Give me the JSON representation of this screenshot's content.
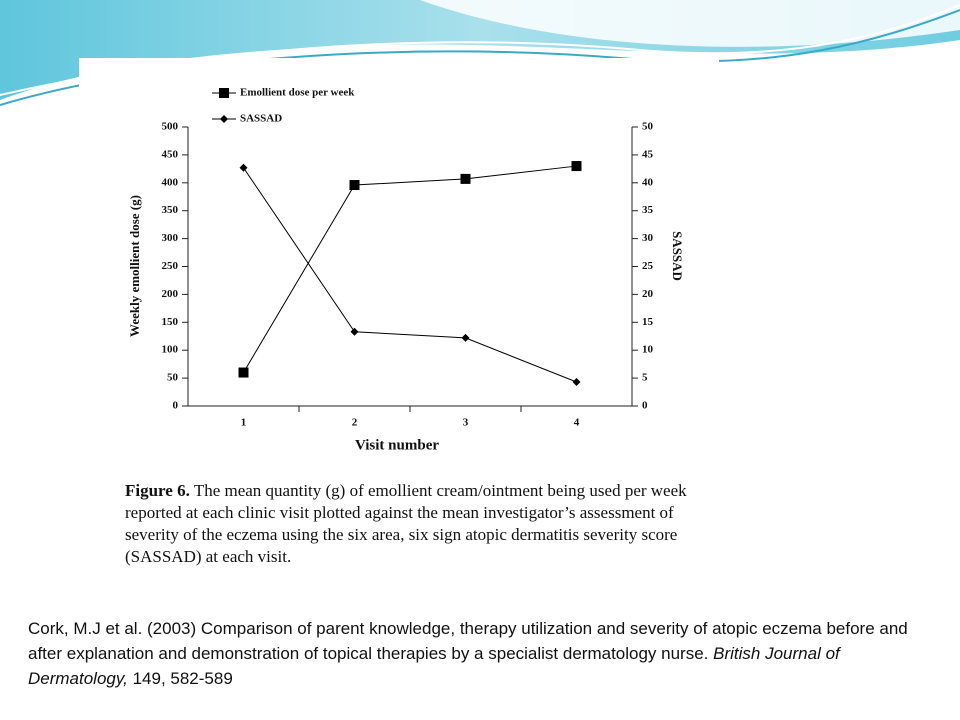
{
  "chart_data": {
    "type": "line",
    "categories": [
      "1",
      "2",
      "3",
      "4"
    ],
    "x_label": "Visit number",
    "y_label": "Weekly emollient dose (g)",
    "y2_label": "SASSAD",
    "ylim": [
      0,
      500
    ],
    "yticks": [
      0,
      50,
      100,
      150,
      200,
      250,
      300,
      350,
      400,
      450,
      500
    ],
    "y2lim": [
      0,
      50
    ],
    "y2ticks": [
      0,
      5,
      10,
      15,
      20,
      25,
      30,
      35,
      40,
      45,
      50
    ],
    "legend": "top-left",
    "series": [
      {
        "name": "Emollient dose per week",
        "color": "#000000",
        "marker": "square",
        "values": [
          60,
          396,
          407,
          430
        ]
      },
      {
        "name": "SASSAD",
        "color": "#000000",
        "marker": "diamond",
        "axis": "y2",
        "values": [
          42.7,
          13.3,
          12.2,
          4.3
        ]
      }
    ]
  },
  "caption": {
    "label": "Figure 6.",
    "text": "The mean quantity (g) of emollient cream/ointment being used per week reported at each clinic visit plotted against the mean investigator’s assessment of severity of the eczema using the six area, six sign atopic dermatitis severity score (SASSAD) at each visit."
  },
  "citation": {
    "text": "Cork, M.J et al. (2003) Comparison of parent knowledge, therapy utilization and severity of atopic eczema before and after explanation and demonstration of topical therapies by a specialist dermatology nurse.",
    "journal": "British Journal of Dermatology,",
    "details": "149, 582-589"
  }
}
